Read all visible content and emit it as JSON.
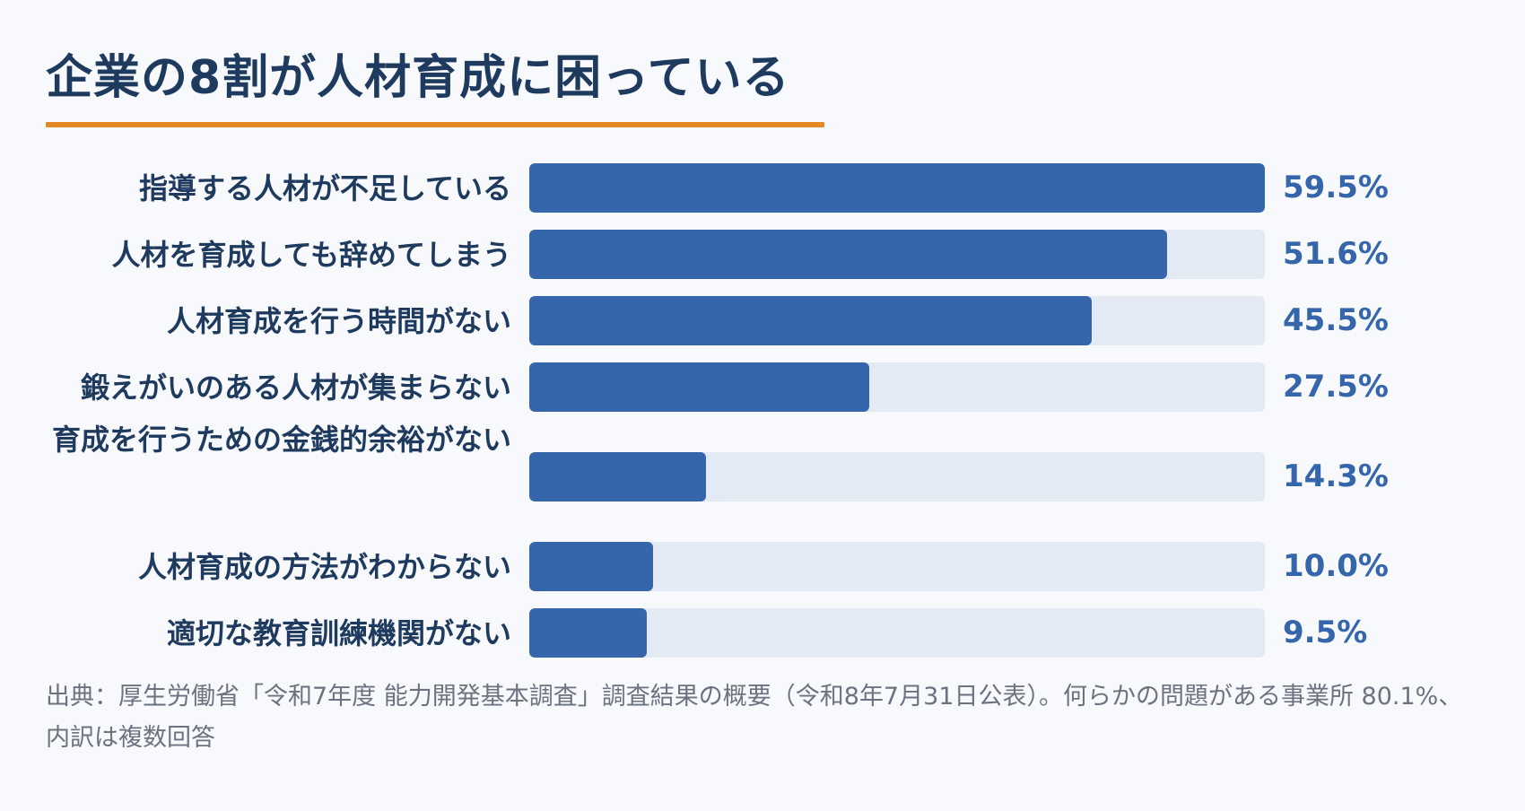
{
  "title": "企業の8割が人材育成に困っている",
  "colors": {
    "title": "#1f3a5f",
    "underline": "#e38a24",
    "bar": "#3565ab",
    "track": "#e4eaf4",
    "value": "#3565ab",
    "source": "#6b7280"
  },
  "chart_data": {
    "type": "bar",
    "orientation": "horizontal",
    "title": "企業の8割が人材育成に困っている",
    "xlim": [
      0,
      59.5
    ],
    "grid": false,
    "categories": [
      "指導する人材が不足している",
      "人材を育成しても辞めてしまう",
      "人材育成を行う時間がない",
      "鍛えがいのある人材が集まらない",
      "育成を行うための金銭的余裕がない",
      "人材育成の方法がわからない",
      "適切な教育訓練機関がない"
    ],
    "values": [
      59.5,
      51.6,
      45.5,
      27.5,
      14.3,
      10.0,
      9.5
    ],
    "value_labels": [
      "59.5%",
      "51.6%",
      "45.5%",
      "27.5%",
      "14.3%",
      "10.0%",
      "9.5%"
    ]
  },
  "source": "出典：厚生労働省「令和7年度 能力開発基本調査」調査結果の概要（令和8年7月31日公表）。何らかの問題がある事業所 80.1%、内訳は複数回答"
}
